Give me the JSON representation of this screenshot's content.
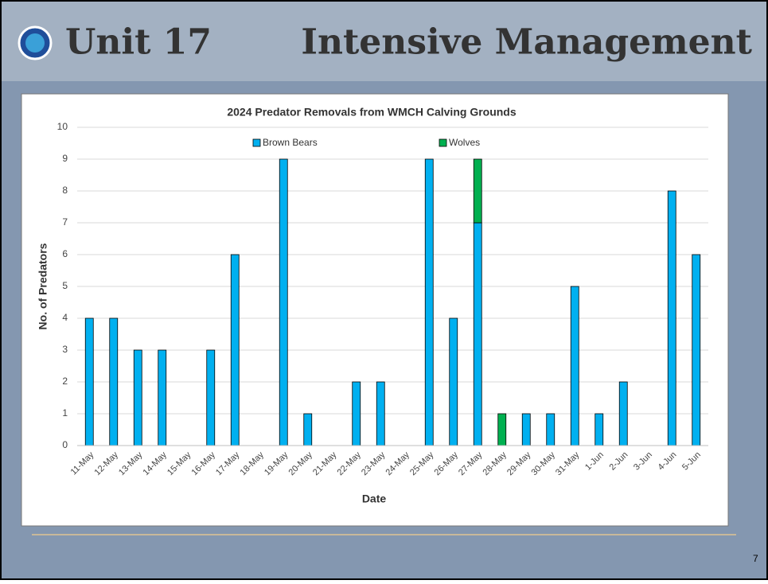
{
  "header": {
    "title_left": "Unit 17",
    "title_right": "Intensive Management"
  },
  "page_number": "7",
  "chart_data": {
    "type": "stacked_bar",
    "title": "2024 Predator Removals from WMCH Calving Grounds",
    "x_label": "Date",
    "y_label": "No. of Predators",
    "categories": [
      "11-May",
      "12-May",
      "13-May",
      "14-May",
      "15-May",
      "16-May",
      "17-May",
      "18-May",
      "19-May",
      "20-May",
      "21-May",
      "22-May",
      "23-May",
      "24-May",
      "25-May",
      "26-May",
      "27-May",
      "28-May",
      "29-May",
      "30-May",
      "31-May",
      "1-Jun",
      "2-Jun",
      "3-Jun",
      "4-Jun",
      "5-Jun"
    ],
    "series": [
      {
        "name": "Brown Bears",
        "color": "#00b0f0",
        "values": [
          4,
          4,
          3,
          3,
          0,
          3,
          6,
          0,
          9,
          1,
          0,
          2,
          2,
          0,
          9,
          4,
          7,
          0,
          1,
          1,
          5,
          1,
          2,
          0,
          8,
          6
        ]
      },
      {
        "name": "Wolves",
        "color": "#00b050",
        "values": [
          0,
          0,
          0,
          0,
          0,
          0,
          0,
          0,
          0,
          0,
          0,
          0,
          0,
          0,
          0,
          0,
          2,
          1,
          0,
          0,
          0,
          0,
          0,
          0,
          0,
          0
        ]
      }
    ],
    "ylim": [
      0,
      10
    ],
    "yticks": [
      0,
      1,
      2,
      3,
      4,
      5,
      6,
      7,
      8,
      9,
      10
    ],
    "grid": true,
    "legend": "top"
  }
}
